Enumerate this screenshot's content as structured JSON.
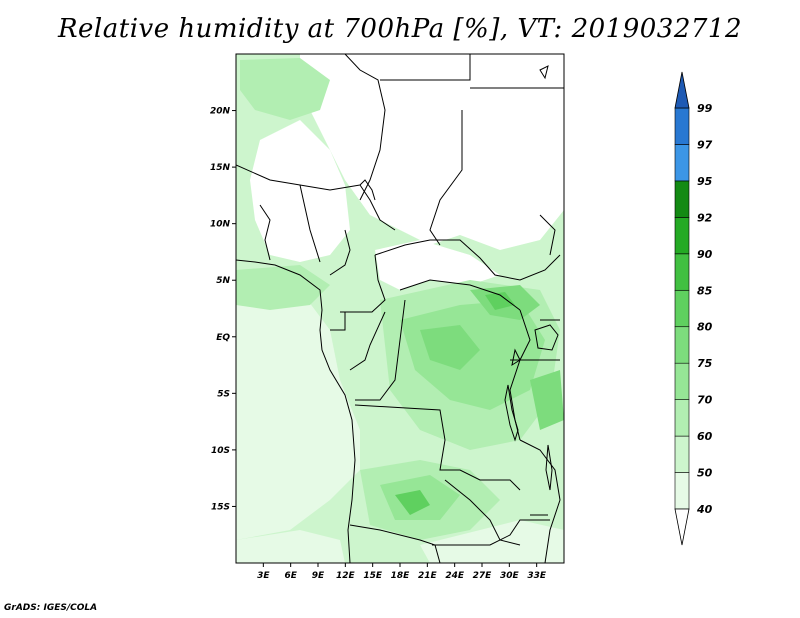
{
  "title": "Relative humidity at 700hPa [%], VT: 2019032712",
  "credit": "GrADS: IGES/COLA",
  "map": {
    "lon_range": [
      0,
      36
    ],
    "lat_range": [
      -20,
      25
    ],
    "lat_ticks": [
      {
        "value": 20,
        "label": "20N"
      },
      {
        "value": 15,
        "label": "15N"
      },
      {
        "value": 10,
        "label": "10N"
      },
      {
        "value": 5,
        "label": "5N"
      },
      {
        "value": 0,
        "label": "EQ"
      },
      {
        "value": -5,
        "label": "5S"
      },
      {
        "value": -10,
        "label": "10S"
      },
      {
        "value": -15,
        "label": "15S"
      }
    ],
    "lon_ticks": [
      {
        "value": 3,
        "label": "3E"
      },
      {
        "value": 6,
        "label": "6E"
      },
      {
        "value": 9,
        "label": "9E"
      },
      {
        "value": 12,
        "label": "12E"
      },
      {
        "value": 15,
        "label": "15E"
      },
      {
        "value": 18,
        "label": "18E"
      },
      {
        "value": 21,
        "label": "21E"
      },
      {
        "value": 24,
        "label": "24E"
      },
      {
        "value": 27,
        "label": "27E"
      },
      {
        "value": 30,
        "label": "30E"
      },
      {
        "value": 33,
        "label": "33E"
      }
    ]
  },
  "legend": {
    "levels": [
      "40",
      "50",
      "60",
      "70",
      "75",
      "80",
      "85",
      "90",
      "92",
      "95",
      "97",
      "99"
    ],
    "colors": [
      "#e6fae6",
      "#cdf5cd",
      "#b2eeb2",
      "#96e696",
      "#7ddc7d",
      "#5fd05f",
      "#41c041",
      "#24aa24",
      "#138a13",
      "#3c96e6",
      "#2878d2",
      "#1e5ab4"
    ],
    "below_color": "#ffffff",
    "above_color": "#1e5ab4"
  }
}
